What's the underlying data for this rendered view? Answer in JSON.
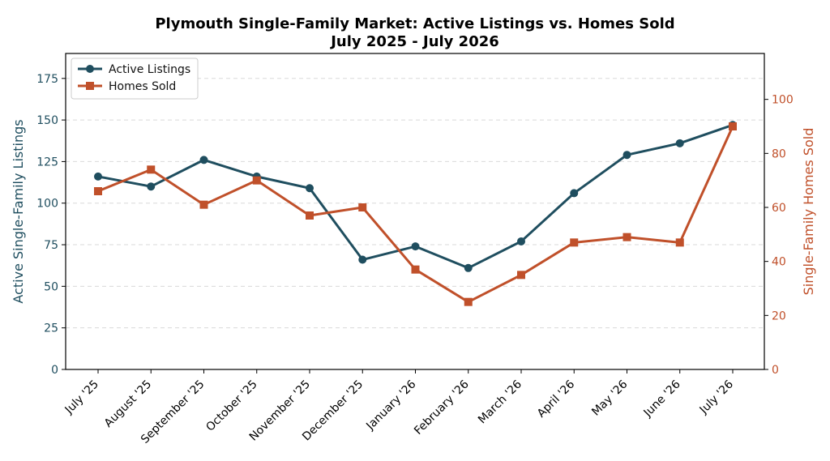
{
  "chart_data": {
    "type": "line",
    "title": "Plymouth Single-Family Market: Active Listings vs. Homes Sold",
    "subtitle": "July 2025 - July 2026",
    "categories": [
      "July '25",
      "August '25",
      "September '25",
      "October '25",
      "November '25",
      "December '25",
      "January '26",
      "February '26",
      "March '26",
      "April '26",
      "May '26",
      "June '26",
      "July '26"
    ],
    "ylabel_left": "Active Single-Family Listings",
    "ylabel_right": "Single-Family Homes Sold",
    "ylim_left": [
      0,
      190
    ],
    "ylim_right": [
      0,
      117
    ],
    "yticks_left": [
      0,
      25,
      50,
      75,
      100,
      125,
      150,
      175
    ],
    "yticks_right": [
      0,
      20,
      40,
      60,
      80,
      100
    ],
    "grid": "horizontal dashed",
    "legend_position": "top-left",
    "series": [
      {
        "name": "Active Listings",
        "axis": "left",
        "color": "#1f4e5f",
        "marker": "circle",
        "values": [
          116,
          110,
          126,
          116,
          109,
          66,
          74,
          61,
          77,
          106,
          129,
          136,
          147
        ]
      },
      {
        "name": "Homes Sold",
        "axis": "right",
        "color": "#c0502a",
        "marker": "square",
        "values": [
          66,
          74,
          61,
          70,
          57,
          60,
          37,
          25,
          35,
          47,
          49,
          47,
          90
        ]
      }
    ]
  }
}
